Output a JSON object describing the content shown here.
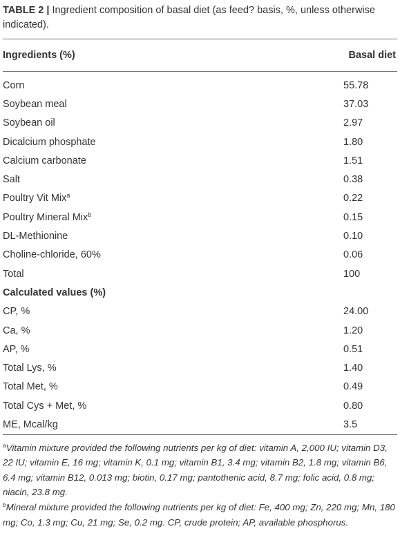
{
  "caption": {
    "label": "TABLE 2 |",
    "text": " Ingredient composition of basal diet (as feed? basis, %, unless otherwise indicated)."
  },
  "table": {
    "headers": [
      "Ingredients (%)",
      "Basal diet"
    ],
    "ingredients": [
      {
        "name": "Corn",
        "value": "55.78"
      },
      {
        "name": "Soybean meal",
        "value": "37.03"
      },
      {
        "name": "Soybean oil",
        "value": "2.97"
      },
      {
        "name": "Dicalcium phosphate",
        "value": "1.80"
      },
      {
        "name": "Calcium carbonate",
        "value": "1.51"
      },
      {
        "name": "Salt",
        "value": "0.38"
      },
      {
        "name": "Poultry Vit Mix",
        "sup": "a",
        "value": "0.22"
      },
      {
        "name": "Poultry Mineral Mix",
        "sup": "b",
        "value": "0.15"
      },
      {
        "name": "DL-Methionine",
        "value": "0.10"
      },
      {
        "name": "Choline-chloride, 60%",
        "value": "0.06"
      },
      {
        "name": "Total",
        "value": "100"
      }
    ],
    "section_label": "Calculated values (%)",
    "calculated": [
      {
        "name": "CP, %",
        "value": "24.00"
      },
      {
        "name": "Ca, %",
        "value": "1.20"
      },
      {
        "name": "AP, %",
        "value": "0.51"
      },
      {
        "name": "Total Lys, %",
        "value": "1.40"
      },
      {
        "name": "Total Met, %",
        "value": "0.49"
      },
      {
        "name": "Total Cys + Met, %",
        "value": "0.80"
      },
      {
        "name": "ME, Mcal/kg",
        "value": "3.5"
      }
    ]
  },
  "footnotes": [
    {
      "mark": "a",
      "text": "Vitamin mixture provided the following nutrients per kg of diet: vitamin A, 2,000 IU; vitamin D3, 22 IU; vitamin E, 16 mg; vitamin K, 0.1 mg; vitamin B1, 3.4 mg; vitamin B2, 1.8 mg; vitamin B6, 6.4 mg; vitamin B12, 0.013 mg; biotin, 0.17 mg; pantothenic acid, 8.7 mg; folic acid, 0.8 mg; niacin, 23.8 mg."
    },
    {
      "mark": "b",
      "text": "Mineral mixture provided the following nutrients per kg of diet: Fe, 400 mg; Zn, 220 mg; Mn, 180 mg; Co, 1.3 mg; Cu, 21 mg; Se, 0.2 mg. CP, crude protein; AP, available phosphorus."
    }
  ]
}
